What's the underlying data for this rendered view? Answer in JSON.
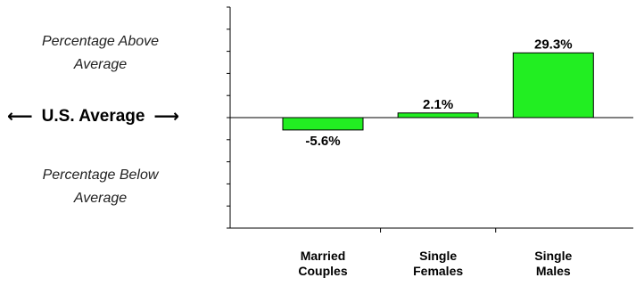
{
  "annotations": {
    "above": "Percentage Above Average",
    "below": "Percentage Below Average",
    "average": "U.S. Average",
    "left_arrow_icon": "arrow-left-icon",
    "right_arrow_icon": "arrow-right-icon"
  },
  "colors": {
    "bar_fill": "#22ee22",
    "bar_stroke": "#000000",
    "axis": "#000000"
  },
  "chart_data": {
    "type": "bar",
    "title": "",
    "xlabel": "",
    "ylabel": "",
    "categories": [
      "Married\nCouples",
      "Single\nFemales",
      "Single\nMales"
    ],
    "category_lines": [
      [
        "Married",
        "Couples"
      ],
      [
        "Single",
        "Females"
      ],
      [
        "Single",
        "Males"
      ]
    ],
    "values": [
      -5.6,
      2.1,
      29.3
    ],
    "data_labels": [
      "-5.6%",
      "2.1%",
      "29.3%"
    ],
    "ylim": [
      -50,
      50
    ],
    "grid": false,
    "legend": "none"
  }
}
